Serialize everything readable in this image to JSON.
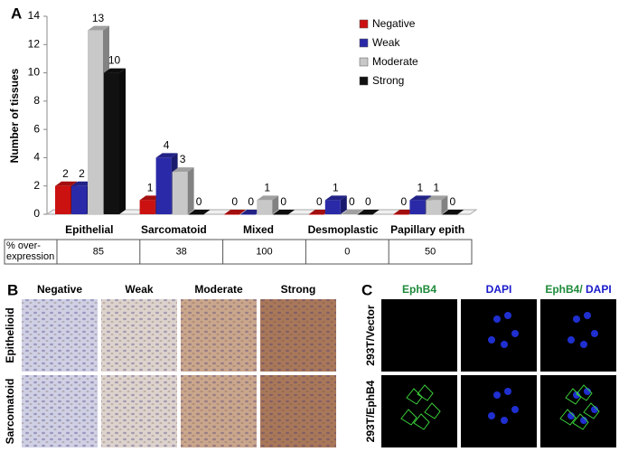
{
  "chart_data": {
    "type": "bar3d",
    "panel": "A",
    "ylabel": "Number of tissues",
    "categories": [
      "Epithelial",
      "Sarcomatoid",
      "Mixed",
      "Desmoplastic",
      "Papillary epith"
    ],
    "series": [
      {
        "name": "Negative",
        "color": "#cc1111",
        "values": [
          2,
          1,
          0,
          0,
          0
        ]
      },
      {
        "name": "Weak",
        "color": "#2a2aa8",
        "values": [
          2,
          4,
          0,
          1,
          1
        ]
      },
      {
        "name": "Moderate",
        "color": "#c8c8c8",
        "values": [
          13,
          3,
          1,
          0,
          1
        ]
      },
      {
        "name": "Strong",
        "color": "#111111",
        "values": [
          10,
          0,
          0,
          0,
          0
        ]
      }
    ],
    "ylim": [
      0,
      14
    ],
    "yticks": [
      0,
      2,
      4,
      6,
      8,
      10,
      12,
      14
    ],
    "legend": "upper right"
  },
  "table": {
    "header": "% over-expression",
    "values": [
      85,
      38,
      100,
      0,
      50
    ]
  },
  "panel_b": {
    "label": "B",
    "columns": [
      "Negative",
      "Weak",
      "Moderate",
      "Strong"
    ],
    "rows": [
      "Epithelioid",
      "Sarcomatoid"
    ]
  },
  "panel_c": {
    "label": "C",
    "columns": [
      "EphB4",
      "DAPI"
    ],
    "merged": [
      "EphB4/",
      " DAPI"
    ],
    "rows": [
      "293T/Vector",
      "293T/EphB4"
    ]
  }
}
